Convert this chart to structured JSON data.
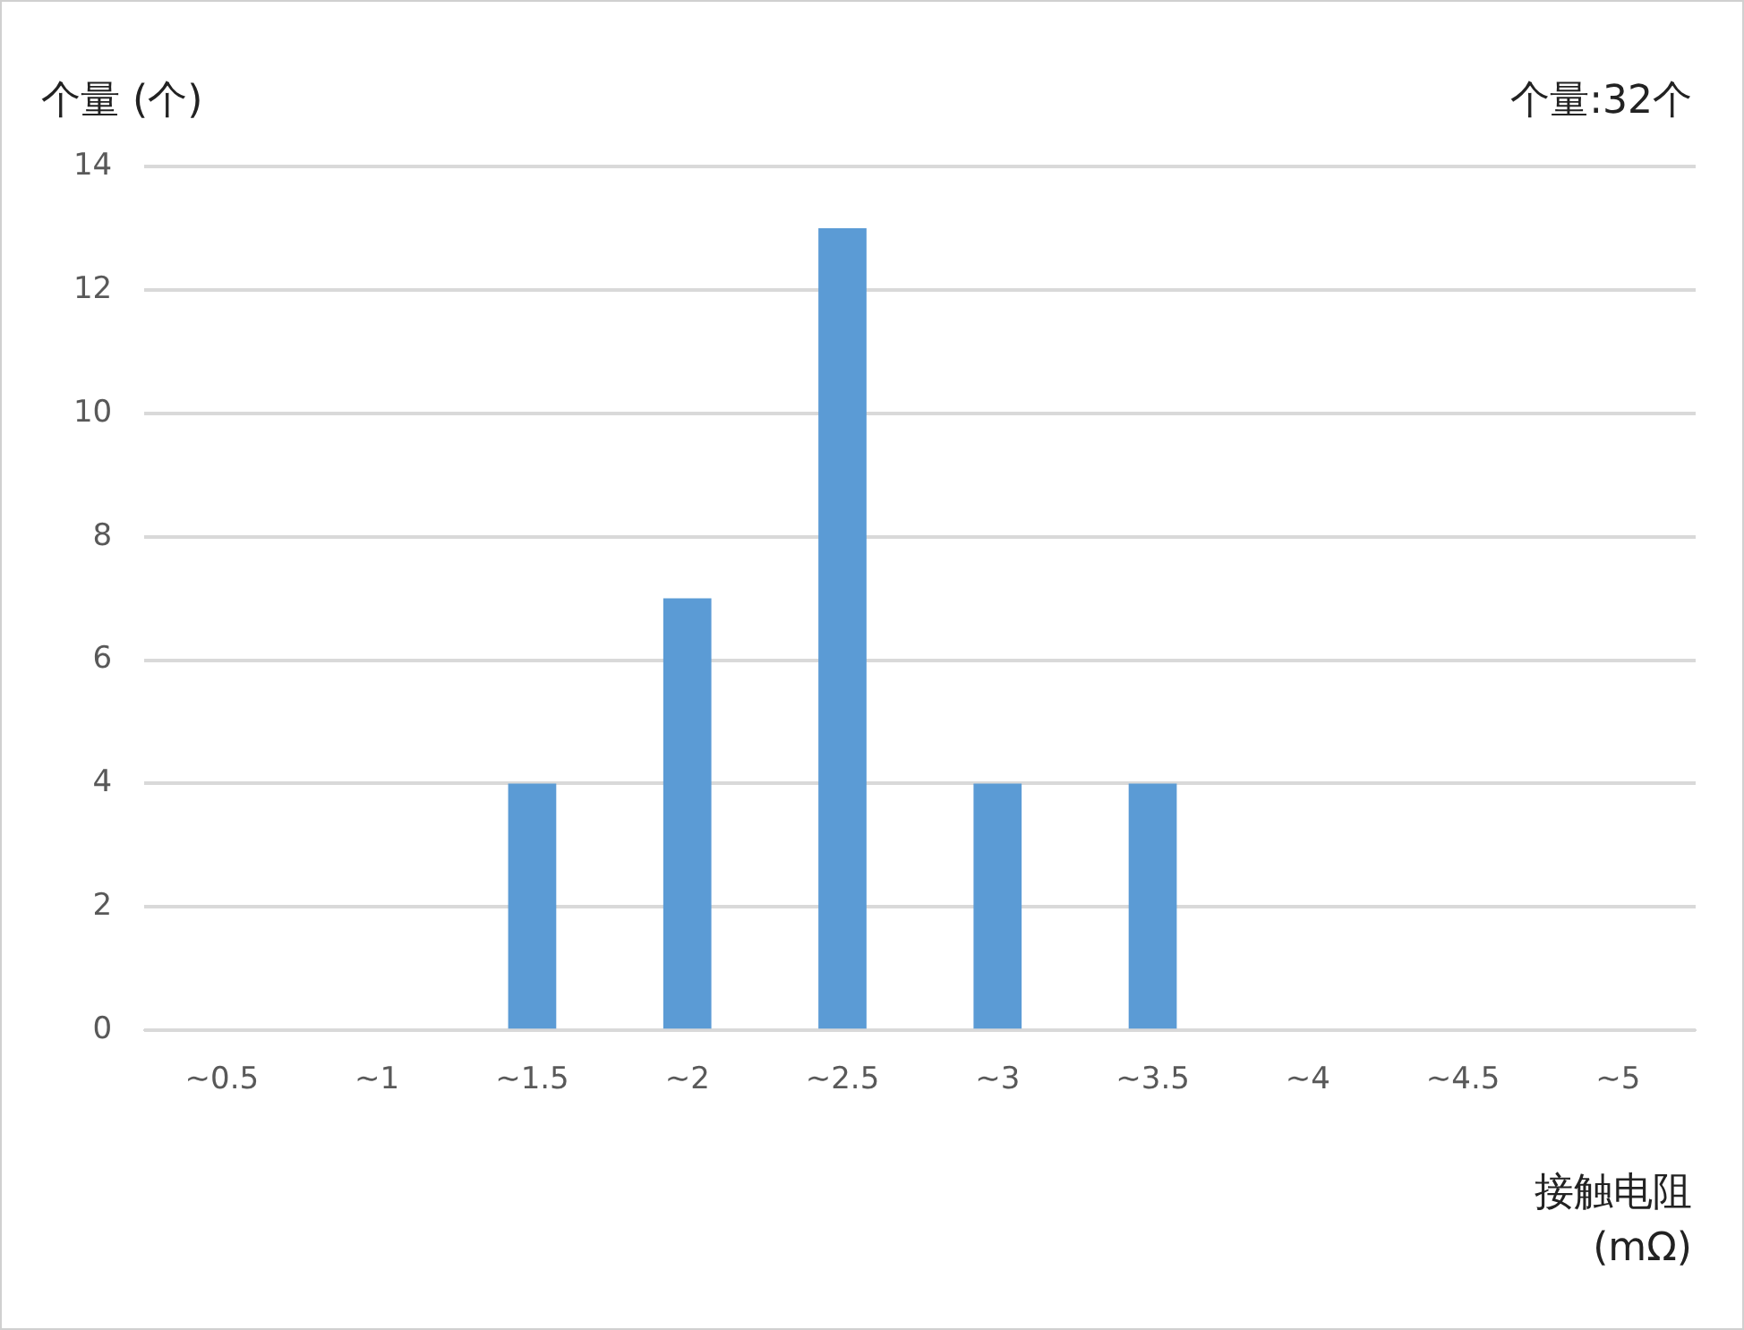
{
  "chart_data": {
    "type": "bar",
    "ylabel": "个量 (个)",
    "xlabel": "接触电阻 (mΩ)",
    "annotations": [
      "个量:32个"
    ],
    "categories": [
      "~0.5",
      "~1",
      "~1.5",
      "~2",
      "~2.5",
      "~3",
      "~3.5",
      "~4",
      "~4.5",
      "~5"
    ],
    "values": [
      0,
      0,
      4,
      7,
      13,
      4,
      4,
      0,
      0,
      0
    ],
    "color": "#5b9bd5",
    "ylim": [
      0,
      14
    ],
    "yticks": [
      0,
      2,
      4,
      6,
      8,
      10,
      12,
      14
    ],
    "grid": "y"
  }
}
